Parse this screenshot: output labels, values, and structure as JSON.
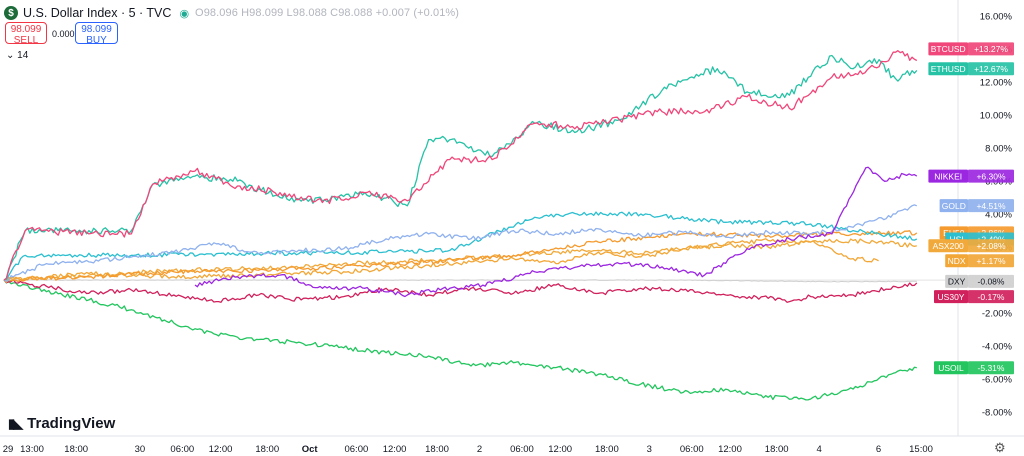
{
  "header": {
    "symbol_title": "U.S. Dollar Index · 5 · TVC",
    "logo_glyph": "$",
    "ohlc_text": "O98.096 H98.099 L98.088 C98.088 +0.007 (+0.01%)",
    "sell_price": "98.099",
    "sell_label": "SELL",
    "buy_price": "98.099",
    "buy_label": "BUY",
    "spread": "0.000",
    "indicators_count": "14"
  },
  "brand": {
    "name": "TradingView"
  },
  "colors": {
    "BTCUSD": "#f0467a",
    "ETHUSD": "#26c2a6",
    "NIKKEI": "#9c27e0",
    "GOLD": "#8fb1ee",
    "EU50": "#f59a2e",
    "HSI": "#2bbfcf",
    "ASX200": "#f0a93a",
    "NDX": "#f2a636",
    "DXY": "#cfcfcf",
    "US30Y": "#d0215c",
    "USOIL": "#22c55e"
  },
  "chart_data": {
    "type": "line",
    "title": "U.S. Dollar Index · 5 · TVC",
    "xlabel": "",
    "ylabel": "",
    "ylim": [
      -9.2,
      16.6
    ],
    "y_unit": "%",
    "y_ticks": [
      "16.00%",
      "14.00%",
      "12.00%",
      "10.00%",
      "8.00%",
      "6.00%",
      "4.00%",
      "2.00%",
      "-2.00%",
      "-4.00%",
      "-6.00%",
      "-8.00%"
    ],
    "y_tick_values": [
      16,
      14,
      12,
      10,
      8,
      6,
      4,
      2,
      -2,
      -4,
      -6,
      -8
    ],
    "x_ticks": [
      "29",
      "13:00",
      "18:00",
      "30",
      "06:00",
      "12:00",
      "18:00",
      "Oct",
      "06:00",
      "12:00",
      "18:00",
      "2",
      "06:00",
      "12:00",
      "18:00",
      "3",
      "06:00",
      "12:00",
      "18:00",
      "4",
      "6",
      "15:00"
    ],
    "x_tick_positions": [
      0.0,
      0.66,
      1.7,
      3.2,
      4.2,
      5.1,
      6.2,
      7.2,
      8.3,
      9.2,
      10.2,
      11.2,
      12.2,
      13.1,
      14.2,
      15.2,
      16.2,
      17.1,
      18.2,
      19.2,
      20.6,
      21.6
    ],
    "x_range": [
      0,
      22.4
    ],
    "series": [
      {
        "name": "BTCUSD",
        "label": "+13.27%",
        "x": [
          0,
          0.5,
          2,
          3,
          3.5,
          4.5,
          5.5,
          6.5,
          7.5,
          8.5,
          9.5,
          10.5,
          11.5,
          12.5,
          13.5,
          14.5,
          15.5,
          16.5,
          17.5,
          18.5,
          19.5,
          20,
          20.5,
          21,
          21.5
        ],
        "y": [
          0,
          3,
          2.8,
          2.8,
          5.8,
          6.6,
          5.7,
          5.3,
          4.7,
          5.3,
          4.8,
          7.3,
          7.3,
          9.5,
          9.3,
          9.7,
          10.2,
          10.2,
          11.1,
          10.4,
          12.3,
          12.4,
          12.9,
          13.8,
          13.3
        ]
      },
      {
        "name": "ETHUSD",
        "label": "+12.67%",
        "x": [
          0,
          0.5,
          2,
          3,
          3.5,
          4.5,
          5.5,
          6.5,
          7.5,
          8.5,
          9.5,
          10,
          10.5,
          11.5,
          12.5,
          13.5,
          14.5,
          15.5,
          16.2,
          16.8,
          17.5,
          18.5,
          19.5,
          20,
          20.5,
          21,
          21.5
        ],
        "y": [
          0,
          3,
          3,
          3,
          5.8,
          6.3,
          6,
          5,
          4.8,
          5.3,
          4.5,
          8.5,
          8.5,
          7.5,
          9.5,
          9,
          9.7,
          11.5,
          12.3,
          12.8,
          11.4,
          11.2,
          13.6,
          12.8,
          13.4,
          12.2,
          12.7
        ]
      },
      {
        "name": "NIKKEI",
        "label": "+6.30%",
        "x": [
          4.5,
          5.5,
          6.5,
          7.5,
          8.5,
          9.5,
          10.5,
          11.5,
          12.5,
          13.5,
          14.5,
          15.5,
          16.5,
          17.5,
          18.5,
          19.5,
          20.3,
          20.8,
          21.2,
          21.5
        ],
        "y": [
          -0.3,
          0.2,
          0.3,
          -0.5,
          -0.5,
          -0.9,
          -0.5,
          -0.2,
          0.5,
          0.8,
          1.0,
          0.8,
          0.3,
          1.9,
          2.5,
          2.8,
          6.8,
          6.0,
          6.4,
          6.3
        ]
      },
      {
        "name": "GOLD",
        "label": "+4.51%",
        "x": [
          0,
          1,
          2,
          3,
          4,
          5,
          6,
          7,
          8,
          9,
          10,
          11,
          12,
          13,
          14,
          15,
          16,
          17,
          18,
          19,
          20,
          21,
          21.5
        ],
        "y": [
          0,
          1.0,
          1.1,
          1.4,
          1.7,
          2.2,
          1.6,
          1.8,
          1.9,
          2.5,
          2.8,
          2.5,
          3.0,
          2.8,
          3.1,
          2.7,
          2.9,
          2.6,
          2.9,
          2.8,
          3.2,
          4.0,
          4.5
        ]
      },
      {
        "name": "EU50",
        "label": "+2.86%",
        "x": [
          0,
          2,
          4,
          6,
          8,
          10,
          12,
          14,
          16,
          18,
          20,
          21.5
        ],
        "y": [
          0,
          0.2,
          0.5,
          0.6,
          0.8,
          1.1,
          1.5,
          2.3,
          2.8,
          2.7,
          2.8,
          2.86
        ]
      },
      {
        "name": "HSI",
        "label": "+2.49%",
        "x": [
          0,
          0.5,
          3,
          6,
          9,
          10.5,
          12.5,
          13.5,
          15,
          16.2,
          17,
          18,
          19,
          20,
          21.5
        ],
        "y": [
          0,
          1.5,
          1.5,
          1.6,
          1.7,
          1.8,
          3.8,
          4.0,
          4.0,
          3.7,
          3.5,
          3.5,
          3.4,
          3.0,
          2.49
        ]
      },
      {
        "name": "ASX200",
        "label": "+2.08%",
        "x": [
          0,
          2,
          4,
          6,
          8,
          10,
          12,
          13,
          14,
          15,
          16,
          17,
          18,
          19,
          20,
          21,
          21.5
        ],
        "y": [
          0,
          0.3,
          0.6,
          0.7,
          1.0,
          1.2,
          1.5,
          1.7,
          1.8,
          1.6,
          1.9,
          2.1,
          2.0,
          2.3,
          2.4,
          2.2,
          2.08
        ]
      },
      {
        "name": "NDX",
        "label": "+1.17%",
        "x": [
          0,
          2,
          4,
          6,
          8,
          10,
          12,
          13,
          14,
          15,
          16,
          17,
          18,
          19,
          20,
          20.6
        ],
        "y": [
          0,
          0.4,
          0.2,
          0.3,
          0.5,
          0.9,
          1.3,
          1.0,
          1.7,
          1.4,
          1.9,
          2.2,
          2.4,
          2.3,
          1.3,
          1.17
        ]
      },
      {
        "name": "DXY",
        "label": "-0.08%",
        "x": [
          0,
          4,
          8,
          12,
          16,
          19.5,
          21.5
        ],
        "y": [
          0,
          0,
          0,
          0,
          0,
          -0.1,
          -0.08
        ]
      },
      {
        "name": "US30Y",
        "label": "-0.17%",
        "x": [
          0,
          2,
          3,
          4,
          5,
          6,
          7,
          8,
          9,
          10,
          11,
          12,
          13,
          14,
          15,
          16,
          17,
          18,
          18.5,
          19,
          20,
          21,
          21.5
        ],
        "y": [
          0,
          -0.8,
          -0.6,
          -0.9,
          -1.3,
          -0.9,
          -1.2,
          -1.0,
          -0.5,
          -0.9,
          -0.5,
          -0.8,
          -0.3,
          -0.8,
          -0.5,
          -0.6,
          -0.9,
          -1.1,
          -1.3,
          -1.0,
          -0.9,
          -0.4,
          -0.17
        ]
      },
      {
        "name": "USOIL",
        "label": "-5.31%",
        "x": [
          0,
          1,
          2,
          3,
          4,
          5,
          6,
          7,
          8,
          9,
          10,
          11,
          12,
          13,
          14,
          15,
          16,
          17,
          18,
          19,
          20,
          20.5,
          21,
          21.5
        ],
        "y": [
          0,
          -0.7,
          -1.2,
          -1.8,
          -2.6,
          -3.3,
          -3.6,
          -3.8,
          -4.1,
          -4.4,
          -4.6,
          -5.2,
          -5.0,
          -5.3,
          -5.7,
          -6.3,
          -6.8,
          -6.6,
          -7.1,
          -7.2,
          -6.6,
          -6.1,
          -5.6,
          -5.31
        ]
      }
    ],
    "grid": false,
    "legend": "right-axis labels"
  }
}
